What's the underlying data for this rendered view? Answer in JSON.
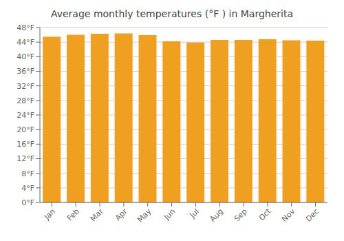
{
  "chart_data": {
    "type": "bar",
    "title": "Average monthly temperatures (°F ) in Margherita",
    "categories": [
      "Jan",
      "Feb",
      "Mar",
      "Apr",
      "May",
      "Jun",
      "Jul",
      "Aug",
      "Sep",
      "Oct",
      "Nov",
      "Dec"
    ],
    "values": [
      45.5,
      46.0,
      46.3,
      46.4,
      45.9,
      44.2,
      43.9,
      44.6,
      44.6,
      44.8,
      44.5,
      44.4
    ],
    "color": "#F0A020",
    "ylim": [
      0,
      48
    ],
    "yticks": [
      {
        "value": 0,
        "label": "0°F"
      },
      {
        "value": 4,
        "label": "4°F"
      },
      {
        "value": 8,
        "label": "8°F"
      },
      {
        "value": 12,
        "label": "12°F"
      },
      {
        "value": 16,
        "label": "16°F"
      },
      {
        "value": 20,
        "label": "20°F"
      },
      {
        "value": 24,
        "label": "24°F"
      },
      {
        "value": 28,
        "label": "28°F"
      },
      {
        "value": 32,
        "label": "32°F"
      },
      {
        "value": 36,
        "label": "36°F"
      },
      {
        "value": 40,
        "label": "40°F"
      },
      {
        "value": 44,
        "label": "44°F"
      },
      {
        "value": 48,
        "label": "48°F"
      }
    ],
    "grid": true
  }
}
